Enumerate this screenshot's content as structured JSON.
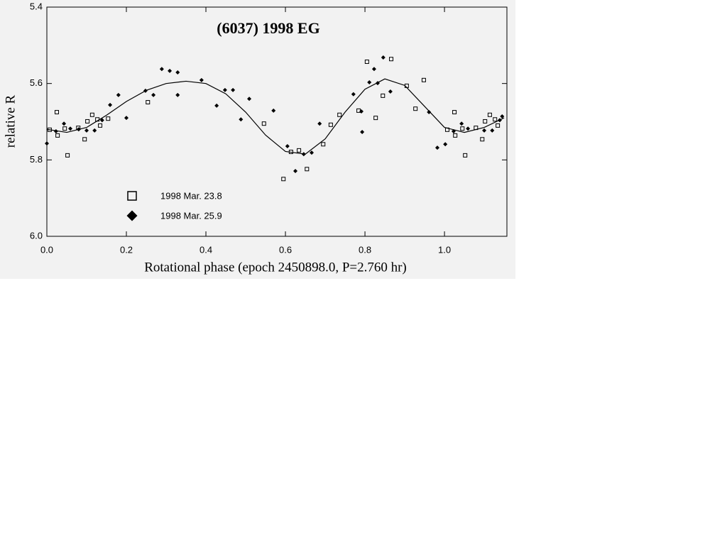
{
  "chart_data": {
    "type": "scatter",
    "title": "(6037) 1998 EG",
    "x_label": "Rotational phase (epoch 2450898.0, P=2.760 hr)",
    "y_label": "relative R",
    "xlim": [
      0,
      1.157
    ],
    "ylim": [
      5.4,
      6.0
    ],
    "y_inverted": true,
    "xticks": [
      {
        "value": 0,
        "label": "0.0"
      },
      0.2,
      0.4,
      0.6,
      0.8,
      {
        "value": 1,
        "label": "1.0"
      }
    ],
    "yticks": [
      5.4,
      5.6,
      5.8,
      {
        "value": 6,
        "label": "6.0"
      }
    ],
    "series": [
      {
        "name": "1998 Mar. 23.8",
        "marker": "square",
        "color": "#000000",
        "x": [
          0.007,
          0.027,
          0.025,
          0.045,
          0.052,
          0.079,
          0.095,
          0.102,
          0.114,
          0.127,
          0.134,
          0.154,
          0.254,
          0.546,
          0.595,
          0.614,
          0.634,
          0.654,
          0.695,
          0.714,
          0.736,
          0.784,
          0.805,
          0.827,
          0.845,
          0.866,
          0.905,
          0.927,
          0.948,
          1.007,
          1.025,
          1.027,
          1.045,
          1.052,
          1.079,
          1.095,
          1.102,
          1.114,
          1.127,
          1.134
        ],
        "values": [
          5.721,
          5.736,
          5.675,
          5.718,
          5.788,
          5.716,
          5.746,
          5.699,
          5.682,
          5.694,
          5.71,
          5.692,
          5.649,
          5.705,
          5.85,
          5.779,
          5.775,
          5.824,
          5.759,
          5.708,
          5.682,
          5.671,
          5.543,
          5.69,
          5.632,
          5.536,
          5.606,
          5.666,
          5.591,
          5.721,
          5.675,
          5.736,
          5.718,
          5.788,
          5.716,
          5.746,
          5.699,
          5.682,
          5.694,
          5.71
        ]
      },
      {
        "name": "1998 Mar. 25.9",
        "marker": "diamond",
        "color": "#000000",
        "x": [
          0,
          0.023,
          0.043,
          0.059,
          0.08,
          0.1,
          0.12,
          0.139,
          0.159,
          0.18,
          0.2,
          0.248,
          0.268,
          0.289,
          0.309,
          0.329,
          0.329,
          0.389,
          0.427,
          0.448,
          0.468,
          0.488,
          0.509,
          0.57,
          0.605,
          0.625,
          0.646,
          0.666,
          0.686,
          0.771,
          0.791,
          0.793,
          0.811,
          0.823,
          0.832,
          0.846,
          0.864,
          0.961,
          0.982,
          1.002,
          1.023,
          1.043,
          1.059,
          1.1,
          1.12,
          1.139,
          1.145
        ],
        "values": [
          5.757,
          5.725,
          5.705,
          5.718,
          5.72,
          5.723,
          5.723,
          5.696,
          5.656,
          5.63,
          5.69,
          5.619,
          5.63,
          5.562,
          5.567,
          5.571,
          5.63,
          5.591,
          5.658,
          5.617,
          5.617,
          5.694,
          5.64,
          5.671,
          5.764,
          5.829,
          5.785,
          5.781,
          5.705,
          5.628,
          5.673,
          5.727,
          5.597,
          5.562,
          5.599,
          5.532,
          5.621,
          5.675,
          5.768,
          5.759,
          5.725,
          5.705,
          5.718,
          5.723,
          5.723,
          5.696,
          5.686
        ]
      },
      {
        "marker": "line",
        "color": "#000000",
        "x": [
          0,
          0.05,
          0.1,
          0.15,
          0.2,
          0.25,
          0.3,
          0.35,
          0.4,
          0.45,
          0.5,
          0.55,
          0.6,
          0.65,
          0.7,
          0.75,
          0.8,
          0.85,
          0.9,
          0.95,
          1.0,
          1.05,
          1.1,
          1.15
        ],
        "values": [
          5.72,
          5.728,
          5.715,
          5.683,
          5.647,
          5.618,
          5.6,
          5.594,
          5.6,
          5.627,
          5.675,
          5.735,
          5.778,
          5.785,
          5.745,
          5.675,
          5.615,
          5.588,
          5.605,
          5.66,
          5.715,
          5.728,
          5.715,
          5.69
        ]
      }
    ]
  }
}
